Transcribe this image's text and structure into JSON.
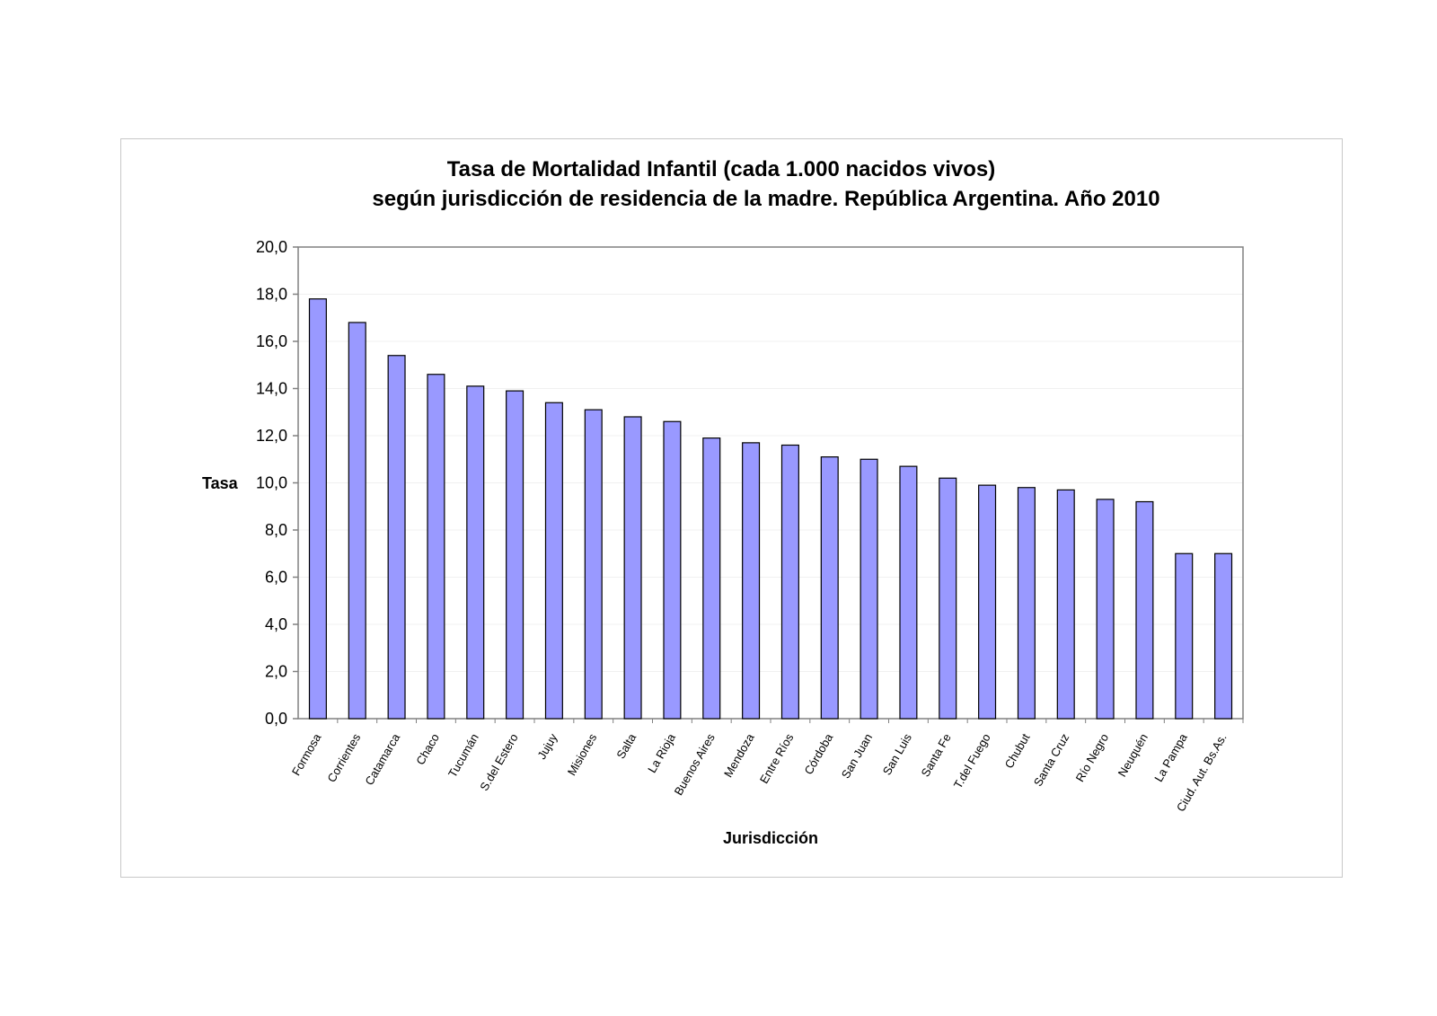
{
  "chart_data": {
    "type": "bar",
    "title": "Tasa de Mortalidad Infantil (cada 1.000 nacidos vivos)",
    "subtitle": "según jurisdicción de residencia de la madre. República Argentina. Año 2010",
    "xlabel": "Jurisdicción",
    "ylabel": "Tasa",
    "ylim": [
      0,
      20
    ],
    "yticks": [
      "0,0",
      "2,0",
      "4,0",
      "6,0",
      "8,0",
      "10,0",
      "12,0",
      "14,0",
      "16,0",
      "18,0",
      "20,0"
    ],
    "grid": true,
    "legend": "none",
    "bar_color": "#9999ff",
    "bar_border_color": "#000000",
    "categories": [
      "Formosa",
      "Corrientes",
      "Catamarca",
      "Chaco",
      "Tucumán",
      "S.del Estero",
      "Jujuy",
      "Misiones",
      "Salta",
      "La Rioja",
      "Buenos Aires",
      "Mendoza",
      "Entre Ríos",
      "Córdoba",
      "San Juan",
      "San Luis",
      "Santa Fe",
      "T.del Fuego",
      "Chubut",
      "Santa Cruz",
      "Río Negro",
      "Neuquén",
      "La Pampa",
      "Ciud. Aut. Bs.As."
    ],
    "values": [
      17.8,
      16.8,
      15.4,
      14.6,
      14.1,
      13.9,
      13.4,
      13.1,
      12.8,
      12.6,
      11.9,
      11.7,
      11.6,
      11.1,
      11.0,
      10.7,
      10.2,
      9.9,
      9.8,
      9.7,
      9.3,
      9.2,
      7.0,
      7.0
    ]
  }
}
